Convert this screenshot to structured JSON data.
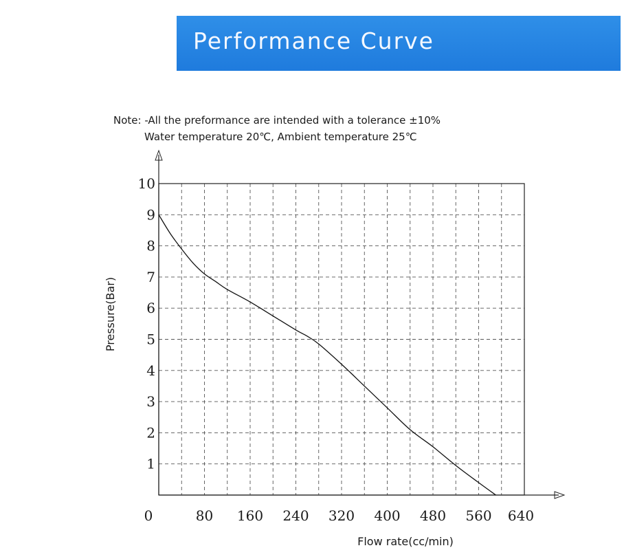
{
  "banner": {
    "title": "Performance Curve",
    "color": "#1f7bdd"
  },
  "note": {
    "line1": "Note: -All the preformance are intended with a tolerance ±10%",
    "line2": "Water temperature 20℃, Ambient temperature 25℃"
  },
  "chart_data": {
    "type": "line",
    "title": "",
    "xlabel": "Flow rate(cc/min)",
    "ylabel": "Pressure(Bar)",
    "xlim": [
      0,
      640
    ],
    "ylim": [
      0,
      10
    ],
    "grid": true,
    "x_ticks": [
      "0",
      "80",
      "160",
      "240",
      "320",
      "400",
      "480",
      "560",
      "640"
    ],
    "y_ticks": [
      "1",
      "2",
      "3",
      "4",
      "5",
      "6",
      "7",
      "8",
      "9",
      "10"
    ],
    "series": [
      {
        "x": [
          0,
          20,
          40,
          60,
          80,
          100,
          120,
          160,
          200,
          240,
          260,
          280,
          320,
          360,
          400,
          440,
          480,
          520,
          560,
          590
        ],
        "y": [
          9.0,
          8.4,
          7.9,
          7.45,
          7.1,
          6.85,
          6.6,
          6.2,
          5.75,
          5.3,
          5.1,
          4.85,
          4.2,
          3.5,
          2.8,
          2.1,
          1.55,
          0.95,
          0.4,
          0.0
        ]
      }
    ]
  }
}
